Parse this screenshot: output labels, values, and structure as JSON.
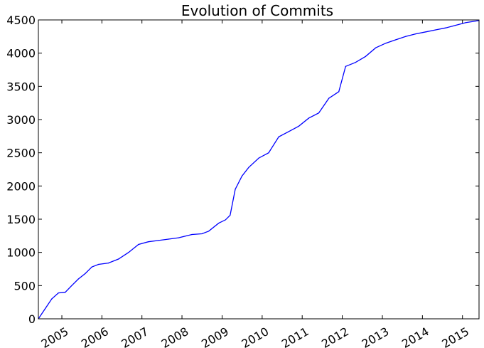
{
  "chart_data": {
    "type": "line",
    "title": "Evolution of Commits",
    "xlabel": "",
    "ylabel": "",
    "x_axis": "date",
    "xlim": [
      "2004-06-01",
      "2015-06-01"
    ],
    "ylim": [
      0,
      4500
    ],
    "yticks": [
      0,
      500,
      1000,
      1500,
      2000,
      2500,
      3000,
      3500,
      4000,
      4500
    ],
    "xticks": [
      "2005-01-01",
      "2006-01-01",
      "2007-01-01",
      "2008-01-01",
      "2009-01-01",
      "2010-01-01",
      "2011-01-01",
      "2012-01-01",
      "2013-01-01",
      "2014-01-01",
      "2015-01-01"
    ],
    "xtick_labels": [
      "2005",
      "2006",
      "2007",
      "2008",
      "2009",
      "2010",
      "2011",
      "2012",
      "2013",
      "2014",
      "2015"
    ],
    "grid": false,
    "colors": {
      "line": "#0000ff"
    },
    "series": [
      {
        "x": [
          "2004-06-01",
          "2004-08-01",
          "2004-10-01",
          "2004-12-01",
          "2005-02-01",
          "2005-04-01",
          "2005-06-01",
          "2005-08-01",
          "2005-10-01",
          "2005-12-01",
          "2006-03-01",
          "2006-06-01",
          "2006-09-01",
          "2006-12-01",
          "2007-03-01",
          "2007-06-01",
          "2007-09-01",
          "2007-12-01",
          "2008-04-01",
          "2008-07-01",
          "2008-09-01",
          "2008-12-01",
          "2009-02-01",
          "2009-03-15",
          "2009-05-01",
          "2009-07-01",
          "2009-09-01",
          "2009-12-01",
          "2010-03-01",
          "2010-06-01",
          "2010-09-01",
          "2010-12-01",
          "2011-03-01",
          "2011-06-01",
          "2011-09-01",
          "2011-12-01",
          "2012-02-01",
          "2012-05-01",
          "2012-08-01",
          "2012-11-01",
          "2013-02-01",
          "2013-05-01",
          "2013-08-01",
          "2013-11-01",
          "2014-02-01",
          "2014-05-01",
          "2014-08-01",
          "2014-11-01",
          "2015-02-01",
          "2015-06-01"
        ],
        "values": [
          0,
          150,
          300,
          390,
          400,
          500,
          600,
          680,
          780,
          820,
          840,
          900,
          1000,
          1120,
          1160,
          1180,
          1200,
          1220,
          1270,
          1280,
          1320,
          1440,
          1490,
          1560,
          1950,
          2150,
          2280,
          2420,
          2500,
          2740,
          2820,
          2900,
          3020,
          3100,
          3320,
          3420,
          3800,
          3860,
          3950,
          4080,
          4150,
          4200,
          4250,
          4290,
          4320,
          4350,
          4380,
          4420,
          4460,
          4490
        ]
      }
    ]
  }
}
